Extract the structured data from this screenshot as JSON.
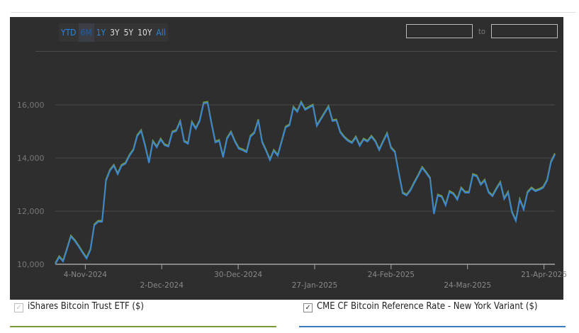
{
  "range_buttons": [
    {
      "label": "YTD",
      "state": "link"
    },
    {
      "label": "6M",
      "state": "active"
    },
    {
      "label": "1Y",
      "state": "link"
    },
    {
      "label": "3Y",
      "state": "plain"
    },
    {
      "label": "5Y",
      "state": "plain"
    },
    {
      "label": "10Y",
      "state": "plain"
    },
    {
      "label": "All",
      "state": "link"
    }
  ],
  "date_range": {
    "to_label": "to"
  },
  "legend": [
    {
      "label": "iShares Bitcoin Trust ETF ($)",
      "checked": true,
      "color": "#7a9a3a"
    },
    {
      "label": "CME CF Bitcoin Reference Rate - New York Variant ($)",
      "checked": true,
      "color": "#3a7abf"
    }
  ],
  "chart_data": {
    "type": "line",
    "xlim_days": [
      0,
      183
    ],
    "ylim": [
      10000,
      17000
    ],
    "yticks": [
      {
        "value": 10000,
        "label": "10,000"
      },
      {
        "value": 12000,
        "label": "12,000"
      },
      {
        "value": 14000,
        "label": "14,000"
      },
      {
        "value": 16000,
        "label": "16,000"
      }
    ],
    "xticks": [
      {
        "day": 11,
        "label": "4-Nov-2024",
        "row": 1
      },
      {
        "day": 39,
        "label": "2-Dec-2024",
        "row": 2
      },
      {
        "day": 67,
        "label": "30-Dec-2024",
        "row": 1
      },
      {
        "day": 95,
        "label": "27-Jan-2025",
        "row": 2
      },
      {
        "day": 123,
        "label": "24-Feb-2025",
        "row": 1
      },
      {
        "day": 151,
        "label": "24-Mar-2025",
        "row": 2
      },
      {
        "day": 179,
        "label": "21-Apr-2025",
        "row": 1
      }
    ],
    "series": [
      {
        "name": "CME CF Bitcoin Reference Rate - New York Variant ($)",
        "color": "#3a86d0",
        "values": [
          10000,
          10267,
          10107,
          10560,
          11040,
          10880,
          10667,
          10427,
          10213,
          10533,
          11467,
          11600,
          11600,
          13147,
          13520,
          13707,
          13387,
          13707,
          13787,
          14080,
          14293,
          14827,
          15013,
          14453,
          13813,
          14613,
          14400,
          14693,
          14480,
          14427,
          14960,
          15013,
          15360,
          14613,
          14533,
          15333,
          15093,
          15387,
          16053,
          16080,
          15307,
          14587,
          14640,
          14027,
          14720,
          14960,
          14613,
          14347,
          14293,
          14213,
          14800,
          14933,
          15413,
          14587,
          14267,
          13920,
          14267,
          14080,
          14613,
          15147,
          15227,
          15893,
          15733,
          16080,
          15813,
          15893,
          15973,
          15200,
          15440,
          15680,
          15920,
          15387,
          15413,
          14960,
          14773,
          14640,
          14560,
          14773,
          14453,
          14693,
          14613,
          14800,
          14613,
          14293,
          14613,
          14907,
          14373,
          14213,
          13413,
          12667,
          12587,
          12773,
          13067,
          13333,
          13627,
          13440,
          13227,
          11893,
          12587,
          12533,
          12213,
          12720,
          12640,
          12427,
          12853,
          12693,
          12693,
          13360,
          13307,
          12987,
          13147,
          12693,
          12560,
          12827,
          13067,
          12453,
          12693,
          11947,
          11627,
          12427,
          12053,
          12693,
          12853,
          12747,
          12800,
          12880,
          13147,
          13840,
          14133
        ]
      }
    ]
  }
}
